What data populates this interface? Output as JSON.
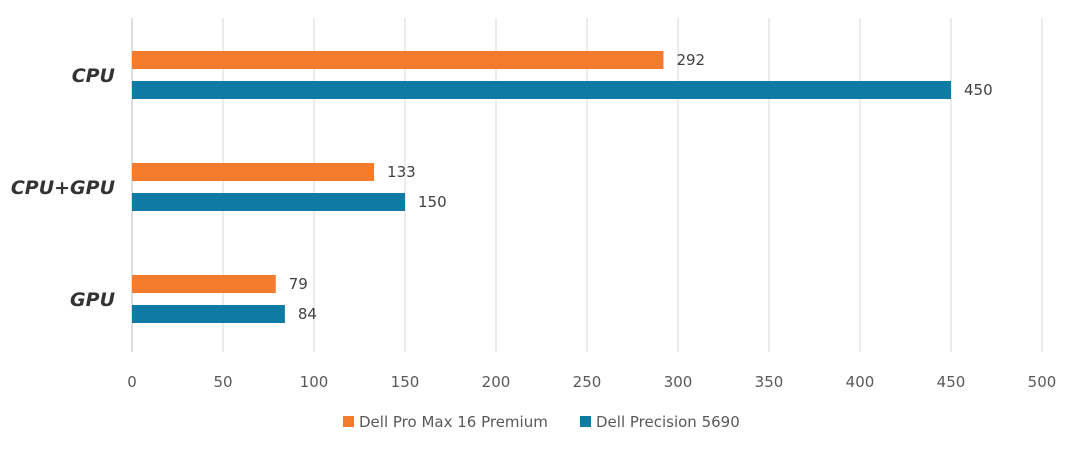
{
  "chart_data": {
    "type": "bar",
    "orientation": "horizontal",
    "categories": [
      "CPU",
      "CPU+GPU",
      "GPU"
    ],
    "series": [
      {
        "name": "Dell Pro Max 16 Premium",
        "values": [
          292,
          133,
          79
        ],
        "color": "#F47B2C"
      },
      {
        "name": "Dell Precision 5690",
        "values": [
          450,
          150,
          84
        ],
        "color": "#0F7AA4"
      }
    ],
    "xlim": [
      0,
      500
    ],
    "ticks": [
      "0",
      "50",
      "100",
      "150",
      "200",
      "250",
      "300",
      "350",
      "400",
      "450",
      "500"
    ],
    "tick_values": [
      0,
      50,
      100,
      150,
      200,
      250,
      300,
      350,
      400,
      450,
      500
    ],
    "grid": true,
    "legend": "bottom",
    "title": "",
    "xlabel": "",
    "ylabel": ""
  },
  "colors": {
    "grid": "#D9D9D9",
    "axis": "#BFBFBF"
  }
}
